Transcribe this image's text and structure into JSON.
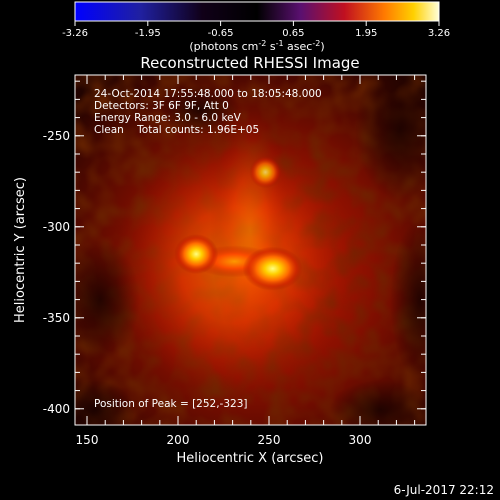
{
  "colorbar": {
    "ticks": [
      "-3.26",
      "-1.95",
      "-0.65",
      "0.65",
      "1.95",
      "3.26"
    ],
    "units_prefix": "(photons cm",
    "units_exp1": "-2",
    "units_mid1": " s",
    "units_exp2": "-1",
    "units_mid2": " asec",
    "units_exp3": "-2",
    "units_suffix": ")"
  },
  "title": "Reconstructed RHESSI Image",
  "info": {
    "line1": "24-Oct-2014 17:55:48.000 to 18:05:48.000",
    "line2": "Detectors: 3F 6F 9F, Att 0",
    "line3": "Energy Range: 3.0 - 6.0 keV",
    "line4": "Clean    Total counts: 1.96E+05"
  },
  "peak_label": "Position of Peak = [252,-323]",
  "axes": {
    "xlabel": "Heliocentric X (arcsec)",
    "ylabel": "Heliocentric Y (arcsec)",
    "xticks": [
      "150",
      "200",
      "250",
      "300"
    ],
    "yticks": [
      "-250",
      "-300",
      "-350",
      "-400"
    ]
  },
  "footer_date": "6-Jul-2017 22:12",
  "colors": {
    "background": "#000000",
    "axis": "#ffffff"
  },
  "sources": [
    {
      "x": 210,
      "y": -315,
      "label": "source-west"
    },
    {
      "x": 252,
      "y": -323,
      "label": "source-peak"
    },
    {
      "x": 248,
      "y": -270,
      "label": "source-north"
    }
  ]
}
